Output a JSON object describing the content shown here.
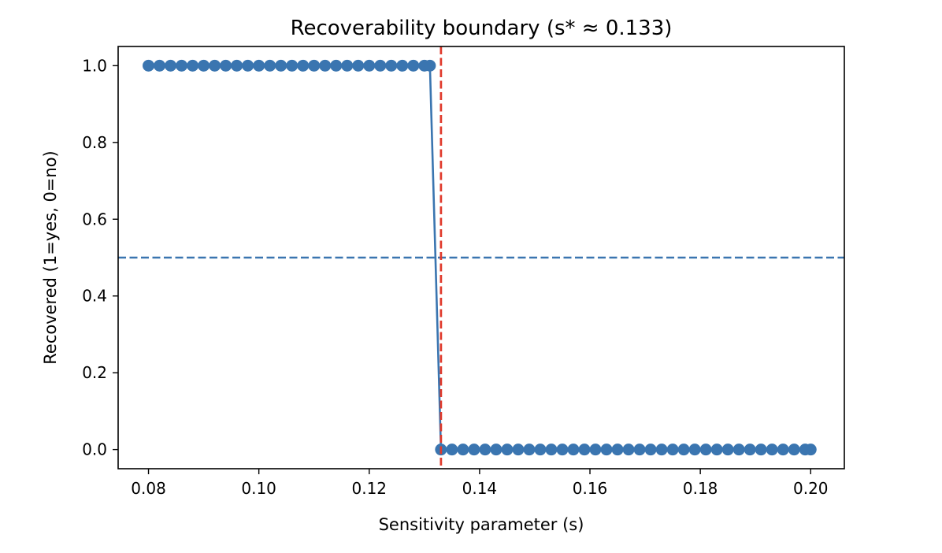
{
  "chart_data": {
    "type": "line",
    "title": "Recoverability boundary (s* ≈ 0.133)",
    "xlabel": "Sensitivity parameter (s)",
    "ylabel": "Recovered (1=yes, 0=no)",
    "xlim": [
      0.0745,
      0.2061
    ],
    "ylim": [
      -0.05,
      1.05
    ],
    "xticks": [
      "0.08",
      "0.10",
      "0.12",
      "0.14",
      "0.16",
      "0.18",
      "0.20"
    ],
    "yticks": [
      "0.0",
      "0.2",
      "0.4",
      "0.6",
      "0.8",
      "1.0"
    ],
    "grid": false,
    "series": [
      {
        "color": "#3a75b0",
        "marker": "circle",
        "x": [
          0.08,
          0.082,
          0.084,
          0.086,
          0.088,
          0.09,
          0.092,
          0.094,
          0.096,
          0.098,
          0.1,
          0.102,
          0.104,
          0.106,
          0.108,
          0.11,
          0.112,
          0.114,
          0.116,
          0.118,
          0.12,
          0.122,
          0.124,
          0.126,
          0.128,
          0.13,
          0.131,
          0.133,
          0.135,
          0.137,
          0.139,
          0.141,
          0.143,
          0.145,
          0.147,
          0.149,
          0.151,
          0.153,
          0.155,
          0.157,
          0.159,
          0.161,
          0.163,
          0.165,
          0.167,
          0.169,
          0.171,
          0.173,
          0.175,
          0.177,
          0.179,
          0.181,
          0.183,
          0.185,
          0.187,
          0.189,
          0.191,
          0.193,
          0.195,
          0.197,
          0.199,
          0.2
        ],
        "y": [
          1,
          1,
          1,
          1,
          1,
          1,
          1,
          1,
          1,
          1,
          1,
          1,
          1,
          1,
          1,
          1,
          1,
          1,
          1,
          1,
          1,
          1,
          1,
          1,
          1,
          1,
          1,
          0,
          0,
          0,
          0,
          0,
          0,
          0,
          0,
          0,
          0,
          0,
          0,
          0,
          0,
          0,
          0,
          0,
          0,
          0,
          0,
          0,
          0,
          0,
          0,
          0,
          0,
          0,
          0,
          0,
          0,
          0,
          0,
          0,
          0,
          0
        ]
      }
    ],
    "reference_lines": [
      {
        "orientation": "horizontal",
        "value": 0.5,
        "color": "#3a75b0",
        "style": "dashed"
      },
      {
        "orientation": "vertical",
        "value": 0.133,
        "color": "#e03a2c",
        "style": "dashed"
      }
    ]
  }
}
